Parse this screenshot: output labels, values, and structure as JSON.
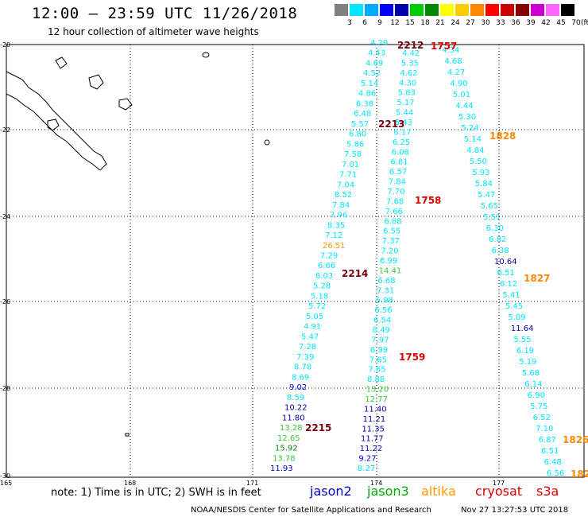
{
  "title": "12:00 — 23:59 UTC 11/26/2018",
  "subtitle": "12 hour collection of altimeter wave heights",
  "legend": {
    "labels": [
      "3",
      "6",
      "9",
      "12",
      "15",
      "18",
      "21",
      "24",
      "27",
      "30",
      "33",
      "36",
      "39",
      "42",
      "45",
      "70"
    ],
    "unit": "(ft)",
    "colors": [
      "#808080",
      "#00e5ff",
      "#00aaff",
      "#0000ff",
      "#0000aa",
      "#00cc00",
      "#008800",
      "#ffff00",
      "#ffcc00",
      "#ff8800",
      "#ff0000",
      "#cc0000",
      "#880000",
      "#cc00cc",
      "#ff66ff",
      "#000000"
    ]
  },
  "axes": {
    "lon_labels": [
      "165",
      "168",
      "171",
      "174",
      "177"
    ],
    "lat_labels": [
      "-20",
      "-22",
      "-24",
      "-26",
      "-28",
      "-30"
    ]
  },
  "passes": [
    {
      "label": "2212",
      "color": "#7a0010"
    },
    {
      "label": "1757",
      "color": "#dd0000"
    },
    {
      "label": "2213",
      "color": "#7a0010"
    },
    {
      "label": "1828",
      "color": "#ff8800"
    },
    {
      "label": "1758",
      "color": "#dd0000"
    },
    {
      "label": "2214",
      "color": "#7a0010"
    },
    {
      "label": "1827",
      "color": "#ff8800"
    },
    {
      "label": "1759",
      "color": "#dd0000"
    },
    {
      "label": "2215",
      "color": "#7a0010"
    },
    {
      "label": "1826",
      "color": "#ff8800"
    },
    {
      "label": "182",
      "color": "#ff8800"
    }
  ],
  "tracks": {
    "jason3_a": [
      "4.29",
      "4.43",
      "4.69",
      "4.52",
      "5.14",
      "4.86",
      "6.38",
      "6.48",
      "5.57",
      "6.80",
      "5.86",
      "7.58",
      "7.01",
      "7.71",
      "7.04",
      "8.52",
      "7.84",
      "7.96",
      "8.35",
      "7.12",
      "26.51",
      "7.29",
      "6.66",
      "8.03",
      "5.28",
      "5.18",
      "5.72",
      "5.05",
      "4.91",
      "5.47",
      "7.28",
      "7.39",
      "8.78",
      "8.69",
      "9.02",
      "8.59",
      "10.22",
      "11.80",
      "13.28",
      "12.65",
      "15.92",
      "13.78",
      "11.93"
    ],
    "jason3_b": [
      "4.42",
      "5.35",
      "4.62",
      "4.30",
      "5.83",
      "5.17",
      "5.44",
      "5.43",
      "6.17",
      "6.25",
      "6.08",
      "6.81",
      "6.57",
      "7.84",
      "7.70",
      "7.68",
      "7.66",
      "6.88",
      "6.55",
      "7.37",
      "7.20",
      "6.99",
      "14.41",
      "6.68",
      "7.31",
      "6.98",
      "6.56",
      "6.54",
      "8.49",
      "7.97",
      "6.99",
      "7.65",
      "7.65",
      "8.88",
      "13.20",
      "12.77",
      "11.40",
      "11.21",
      "11.35",
      "11.77",
      "11.22",
      "9.27",
      "8.27"
    ],
    "cryosat_a": [
      "4.34",
      "4.68",
      "4.27",
      "4.90",
      "5.01",
      "4.44",
      "5.30",
      "5.24",
      "5.14",
      "4.84",
      "5.50",
      "5.93",
      "5.84",
      "5.47",
      "5.65",
      "5.51",
      "6.30",
      "6.82",
      "6.38",
      "10.64",
      "6.51",
      "6.12",
      "5.41",
      "5.45",
      "5.09",
      "11.64",
      "5.55",
      "6.19",
      "5.19",
      "5.68",
      "6.14",
      "6.90",
      "5.75",
      "6.52",
      "7.10",
      "6.87",
      "6.51",
      "6.48",
      "6.56"
    ]
  },
  "footer": {
    "note": "note: 1) Time is in UTC; 2) SWH is in feet",
    "satellites": [
      {
        "name": "jason2",
        "color": "#0000cc"
      },
      {
        "name": "jason3",
        "color": "#00aa00"
      },
      {
        "name": "altika",
        "color": "#ff9900"
      },
      {
        "name": "cryosat",
        "color": "#dd0000"
      },
      {
        "name": "s3a",
        "color": "#dd0000"
      }
    ],
    "credit": "NOAA/NESDIS Center for Satellite Applications and Research",
    "timestamp": "Nov 27 13:27:53 UTC 2018"
  }
}
